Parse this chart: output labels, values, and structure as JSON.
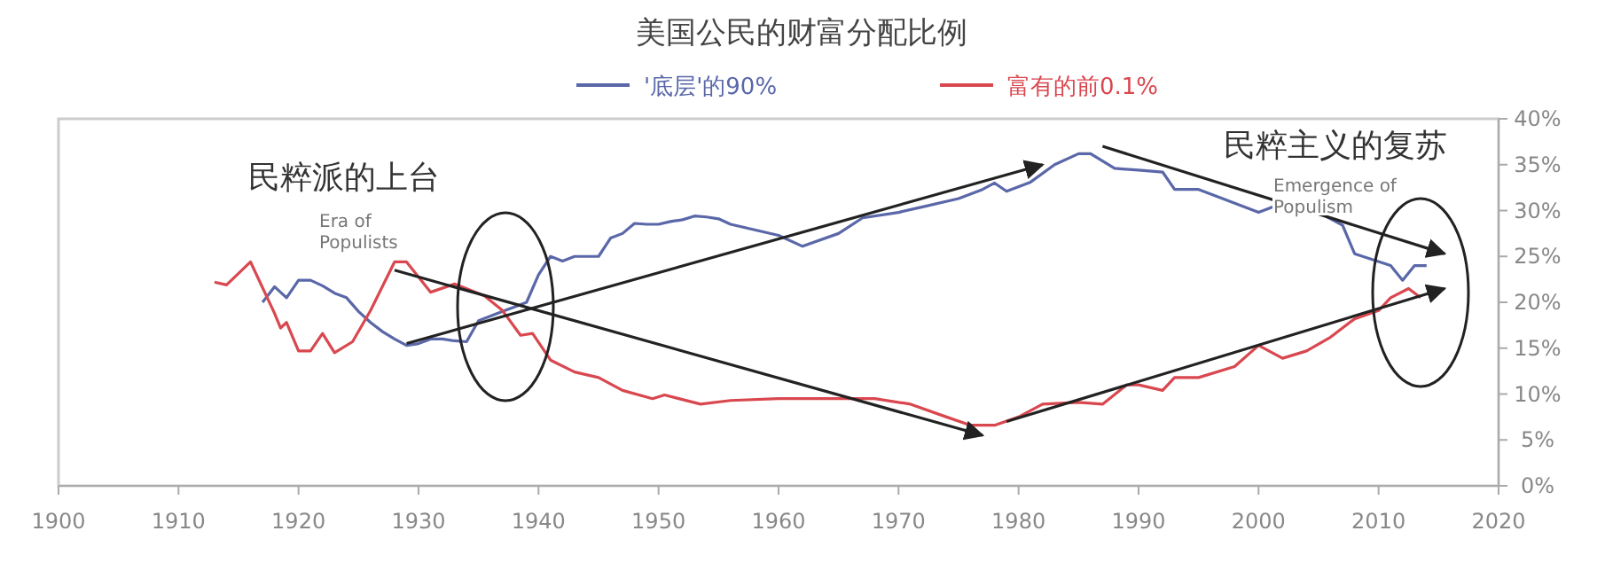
{
  "chart_data": {
    "type": "line",
    "title": "美国公民的财富分配比例",
    "legend": "top",
    "grid": false,
    "xlim": [
      1900,
      2020
    ],
    "xticks": [
      1900,
      1910,
      1920,
      1930,
      1940,
      1950,
      1960,
      1970,
      1980,
      1990,
      2000,
      2010,
      2020
    ],
    "ylim": [
      0,
      40
    ],
    "yticks": [
      {
        "value": 0,
        "label": "0%"
      },
      {
        "value": 5,
        "label": "5%"
      },
      {
        "value": 10,
        "label": "10%"
      },
      {
        "value": 15,
        "label": "15%"
      },
      {
        "value": 20,
        "label": "20%"
      },
      {
        "value": 25,
        "label": "25%"
      },
      {
        "value": 30,
        "label": "30%"
      },
      {
        "value": 35,
        "label": "35%"
      },
      {
        "value": 40,
        "label": "40%"
      }
    ],
    "series": [
      {
        "name": "'底层'的90%",
        "color": "#5a67a8",
        "x": [
          1917,
          1918,
          1919,
          1920,
          1921,
          1922,
          1923,
          1924,
          1925,
          1926,
          1927,
          1928,
          1929,
          1930,
          1931,
          1932,
          1933,
          1934,
          1935,
          1936,
          1937,
          1938,
          1939,
          1940,
          1941,
          1942,
          1943,
          1944,
          1945,
          1946,
          1947,
          1948,
          1949,
          1950,
          1951,
          1952,
          1953,
          1954,
          1955,
          1956,
          1958,
          1960,
          1962,
          1965,
          1967,
          1970,
          1972,
          1975,
          1977,
          1978,
          1979,
          1981,
          1983,
          1985,
          1986,
          1988,
          1990,
          1992,
          1993,
          1995,
          1997,
          2000,
          2002,
          2005,
          2007,
          2008,
          2011,
          2012,
          2013,
          2014
        ],
        "values": [
          20,
          21.7,
          20.5,
          22.4,
          22.4,
          21.8,
          21,
          20.5,
          19,
          17.8,
          16.8,
          16,
          15.3,
          15.5,
          16,
          16,
          15.8,
          15.7,
          18,
          18.5,
          19,
          19.5,
          20,
          23,
          25,
          24.5,
          25,
          25,
          25,
          27,
          27.5,
          28.6,
          28.5,
          28.5,
          28.8,
          29,
          29.4,
          29.3,
          29.1,
          28.5,
          27.9,
          27.3,
          26.1,
          27.5,
          29.2,
          29.8,
          30.4,
          31.3,
          32.3,
          33,
          32.1,
          33.1,
          35,
          36.2,
          36.2,
          34.6,
          34.4,
          34.2,
          32.3,
          32.3,
          31.3,
          29.8,
          30.8,
          29.8,
          28.4,
          25.3,
          24,
          22.4,
          24,
          24
        ]
      },
      {
        "name": "富有的前0.1%",
        "color": "#d9474f",
        "x": [
          1913,
          1914,
          1916,
          1918,
          1918.5,
          1919,
          1920,
          1921,
          1922,
          1923,
          1924.5,
          1926,
          1928,
          1929,
          1931,
          1933,
          1935.5,
          1937,
          1938.5,
          1939.5,
          1941,
          1943,
          1945,
          1947,
          1949.5,
          1950.5,
          1953.5,
          1956,
          1960,
          1962,
          1966,
          1968,
          1971,
          1974,
          1976,
          1978,
          1980,
          1982,
          1985,
          1987,
          1989,
          1990,
          1992,
          1993,
          1995,
          1998,
          2000,
          2002,
          2004,
          2006,
          2008,
          2010,
          2011,
          2012.5,
          2013.5
        ],
        "values": [
          22.2,
          21.9,
          24.4,
          18.8,
          17.2,
          17.8,
          14.7,
          14.7,
          16.6,
          14.5,
          15.7,
          19.1,
          24.4,
          24.4,
          21.1,
          22,
          20.7,
          19.1,
          16.4,
          16.6,
          13.7,
          12.4,
          11.8,
          10.4,
          9.5,
          9.9,
          8.9,
          9.3,
          9.5,
          9.5,
          9.5,
          9.5,
          8.9,
          7.5,
          6.6,
          6.6,
          7.5,
          8.9,
          9.1,
          8.9,
          11,
          11,
          10.4,
          11.8,
          11.8,
          13,
          15.3,
          13.9,
          14.7,
          16.2,
          18.2,
          19.1,
          20.5,
          21.5,
          20.5
        ]
      }
    ],
    "annotations": [
      "民粹派的上台",
      "Era of Populists",
      "民粹主义的复苏",
      "Emergence of Populism"
    ]
  }
}
